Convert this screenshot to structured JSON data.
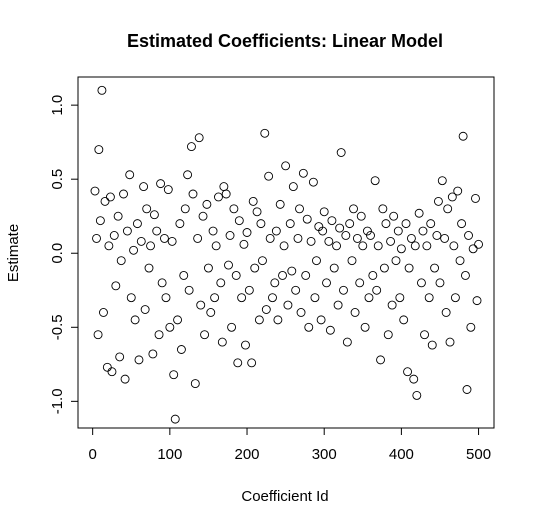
{
  "chart_data": {
    "type": "scatter",
    "title": "Estimated Coefficients: Linear Model",
    "x_label": "Coefficient Id",
    "y_label": "Estimate",
    "xlim": [
      -19,
      520
    ],
    "ylim": [
      -1.18,
      1.19
    ],
    "xticks": [
      0,
      100,
      200,
      300,
      400,
      500
    ],
    "yticks": [
      {
        "value": -1,
        "label": "-1.0"
      },
      {
        "value": -0.5,
        "label": "-0.5"
      },
      {
        "value": 0,
        "label": "0.0"
      },
      {
        "value": 0.5,
        "label": "0.5"
      },
      {
        "value": 1,
        "label": "1.0"
      }
    ],
    "color": "#000000",
    "x": [
      3,
      5,
      7,
      8,
      10,
      12,
      14,
      16,
      19,
      21,
      23,
      25,
      28,
      30,
      33,
      35,
      37,
      40,
      42,
      45,
      48,
      50,
      53,
      55,
      58,
      60,
      63,
      66,
      68,
      70,
      73,
      75,
      78,
      80,
      83,
      86,
      88,
      90,
      93,
      95,
      98,
      100,
      103,
      105,
      107,
      110,
      113,
      115,
      118,
      120,
      123,
      125,
      128,
      130,
      133,
      136,
      138,
      140,
      143,
      145,
      148,
      150,
      153,
      156,
      158,
      160,
      163,
      166,
      168,
      170,
      173,
      176,
      178,
      180,
      183,
      186,
      188,
      190,
      193,
      196,
      198,
      200,
      203,
      206,
      208,
      210,
      213,
      216,
      218,
      220,
      223,
      225,
      228,
      230,
      233,
      236,
      238,
      240,
      243,
      246,
      248,
      250,
      253,
      256,
      258,
      260,
      263,
      266,
      268,
      270,
      273,
      276,
      278,
      280,
      283,
      286,
      288,
      290,
      293,
      296,
      298,
      300,
      303,
      306,
      308,
      310,
      313,
      316,
      318,
      320,
      322,
      325,
      328,
      330,
      333,
      336,
      338,
      340,
      343,
      346,
      348,
      350,
      353,
      356,
      358,
      360,
      363,
      366,
      368,
      370,
      373,
      376,
      378,
      380,
      383,
      386,
      388,
      390,
      393,
      396,
      398,
      400,
      403,
      406,
      408,
      410,
      413,
      416,
      418,
      420,
      423,
      426,
      428,
      430,
      433,
      436,
      438,
      440,
      443,
      446,
      448,
      450,
      453,
      456,
      458,
      460,
      463,
      466,
      468,
      470,
      473,
      476,
      478,
      480,
      483,
      485,
      487,
      490,
      493,
      496,
      498,
      500
    ],
    "values": [
      0.42,
      0.1,
      -0.55,
      0.7,
      0.22,
      1.1,
      -0.4,
      0.35,
      -0.77,
      0.05,
      0.38,
      -0.8,
      0.12,
      -0.22,
      0.25,
      -0.7,
      -0.05,
      0.4,
      -0.85,
      0.15,
      0.53,
      -0.3,
      0.02,
      -0.45,
      0.2,
      -0.72,
      0.08,
      0.45,
      -0.38,
      0.3,
      -0.1,
      0.05,
      -0.68,
      0.26,
      0.15,
      -0.55,
      0.47,
      -0.2,
      0.1,
      -0.3,
      0.43,
      -0.5,
      0.08,
      -0.82,
      -1.12,
      -0.45,
      0.2,
      -0.65,
      -0.15,
      0.3,
      0.53,
      -0.25,
      0.72,
      0.4,
      -0.88,
      0.1,
      0.78,
      -0.35,
      0.25,
      -0.55,
      0.33,
      -0.1,
      -0.4,
      0.15,
      -0.3,
      0.05,
      0.38,
      -0.2,
      -0.6,
      0.45,
      0.4,
      -0.08,
      0.12,
      -0.5,
      0.3,
      -0.15,
      -0.74,
      0.22,
      -0.3,
      0.06,
      -0.62,
      0.14,
      -0.25,
      -0.74,
      0.35,
      -0.1,
      0.28,
      -0.45,
      0.2,
      -0.05,
      0.81,
      -0.38,
      0.52,
      0.1,
      -0.3,
      -0.2,
      0.15,
      -0.45,
      0.33,
      -0.15,
      0.05,
      0.59,
      -0.35,
      0.2,
      -0.12,
      0.45,
      -0.25,
      0.1,
      0.3,
      -0.4,
      0.54,
      -0.15,
      0.23,
      -0.5,
      0.08,
      0.48,
      -0.3,
      -0.05,
      0.18,
      -0.45,
      0.15,
      0.28,
      -0.2,
      0.08,
      -0.52,
      0.22,
      -0.1,
      0.05,
      -0.35,
      0.17,
      0.68,
      -0.25,
      0.12,
      -0.6,
      0.2,
      -0.05,
      0.3,
      -0.4,
      0.1,
      -0.2,
      0.25,
      0.05,
      -0.5,
      0.15,
      -0.3,
      0.12,
      -0.15,
      0.49,
      -0.25,
      0.05,
      -0.72,
      0.3,
      -0.1,
      0.2,
      -0.55,
      0.08,
      -0.35,
      0.25,
      -0.05,
      0.15,
      -0.3,
      0.03,
      -0.45,
      0.2,
      -0.8,
      -0.1,
      0.1,
      -0.85,
      0.05,
      -0.96,
      0.27,
      -0.2,
      0.15,
      -0.55,
      0.05,
      -0.3,
      0.2,
      -0.62,
      -0.1,
      0.12,
      0.35,
      -0.2,
      0.49,
      0.1,
      -0.4,
      0.3,
      -0.6,
      0.38,
      0.05,
      -0.3,
      0.42,
      -0.05,
      0.2,
      0.79,
      -0.15,
      -0.92,
      0.12,
      -0.5,
      0.03,
      0.37,
      -0.32,
      0.06
    ]
  }
}
